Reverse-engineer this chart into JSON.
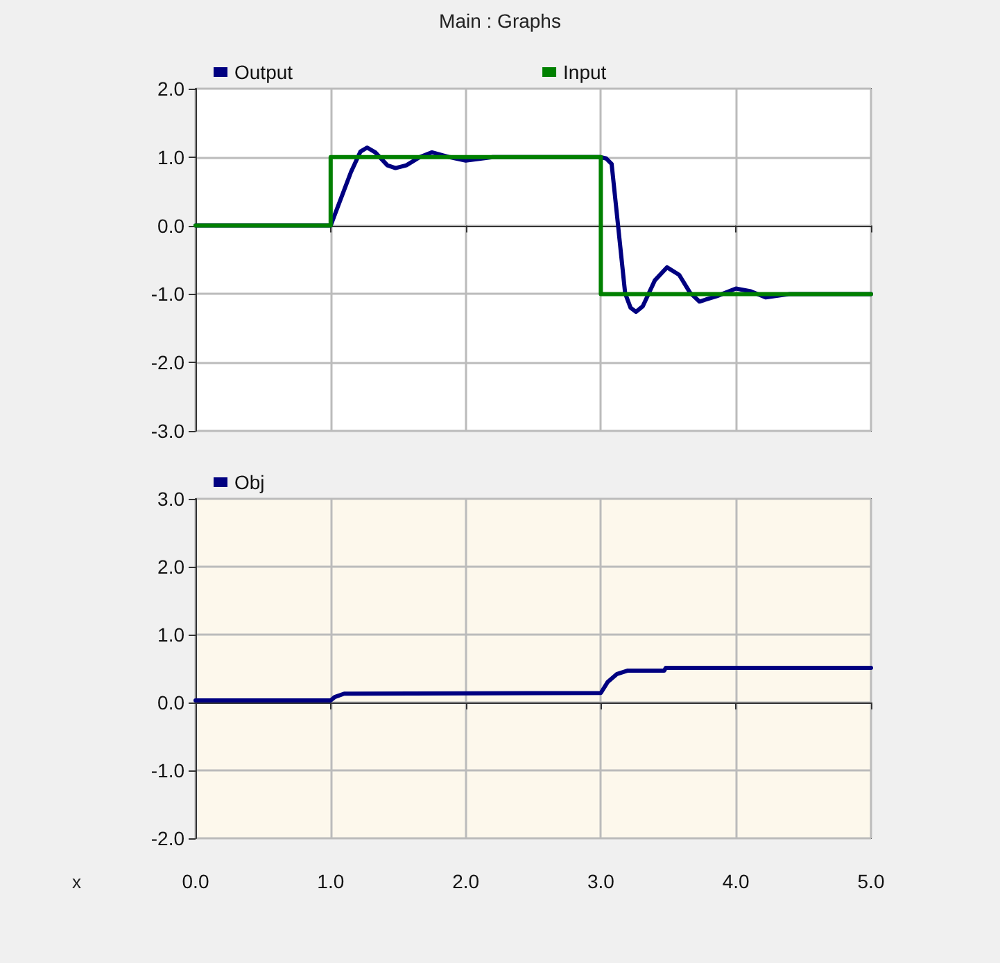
{
  "chart_data": [
    {
      "type": "line",
      "title": "Main : Graphs",
      "xlim": [
        0,
        5
      ],
      "xticks": [
        {
          "value": 0,
          "label": null
        },
        {
          "value": 1,
          "label": null
        },
        {
          "value": 2,
          "label": null
        },
        {
          "value": 3,
          "label": null
        },
        {
          "value": 4,
          "label": null
        },
        {
          "value": 5,
          "label": null
        }
      ],
      "ylim": [
        -3,
        2
      ],
      "yticks": [
        {
          "value": -3,
          "label": "-3.0"
        },
        {
          "value": -2,
          "label": "-2.0"
        },
        {
          "value": -1,
          "label": "-1.0"
        },
        {
          "value": 0,
          "label": "0.0"
        },
        {
          "value": 1,
          "label": "1.0"
        },
        {
          "value": 2,
          "label": "2.0"
        }
      ],
      "tick_labels": "y",
      "grid": true,
      "legend": "top left",
      "series": [
        {
          "name": "Output",
          "color": "#000080",
          "x": [
            0,
            1.0,
            1.15,
            1.22,
            1.27,
            1.33,
            1.42,
            1.48,
            1.56,
            1.66,
            1.75,
            1.88,
            2.0,
            2.2,
            3.0,
            3.04,
            3.08,
            3.18,
            3.22,
            3.26,
            3.31,
            3.4,
            3.49,
            3.58,
            3.66,
            3.73,
            3.86,
            4.0,
            4.11,
            4.22,
            4.4,
            5
          ],
          "values": [
            0,
            0,
            0.78,
            1.08,
            1.14,
            1.07,
            0.88,
            0.84,
            0.88,
            1.0,
            1.07,
            1.0,
            0.95,
            1.0,
            1.0,
            0.98,
            0.9,
            -0.99,
            -1.2,
            -1.26,
            -1.18,
            -0.8,
            -0.61,
            -0.72,
            -0.98,
            -1.11,
            -1.03,
            -0.92,
            -0.96,
            -1.05,
            -1.0,
            -1.0
          ]
        },
        {
          "name": "Input",
          "type": "step",
          "color": "#008000",
          "x": [
            0,
            1,
            3,
            5
          ],
          "values": [
            0,
            1,
            -1,
            -1
          ]
        }
      ]
    },
    {
      "type": "line",
      "xlabel": "x",
      "xlim": [
        0,
        5
      ],
      "xticks": [
        {
          "value": 0,
          "label": "0.0"
        },
        {
          "value": 1,
          "label": "1.0"
        },
        {
          "value": 2,
          "label": "2.0"
        },
        {
          "value": 3,
          "label": "3.0"
        },
        {
          "value": 4,
          "label": "4.0"
        },
        {
          "value": 5,
          "label": "5.0"
        }
      ],
      "ylim": [
        -2,
        3
      ],
      "yticks": [
        {
          "value": -2,
          "label": "-2.0"
        },
        {
          "value": -1,
          "label": "-1.0"
        },
        {
          "value": 0,
          "label": "0.0"
        },
        {
          "value": 1,
          "label": "1.0"
        },
        {
          "value": 2,
          "label": "2.0"
        },
        {
          "value": 3,
          "label": "3.0"
        }
      ],
      "grid": true,
      "legend": "top left",
      "series": [
        {
          "name": "Obj",
          "color": "#000080",
          "x": [
            0,
            1.0,
            1.03,
            1.1,
            3.0,
            3.05,
            3.12,
            3.2,
            3.47,
            3.48,
            5
          ],
          "values": [
            0.03,
            0.03,
            0.08,
            0.13,
            0.14,
            0.3,
            0.42,
            0.47,
            0.47,
            0.51,
            0.51
          ]
        }
      ]
    }
  ]
}
